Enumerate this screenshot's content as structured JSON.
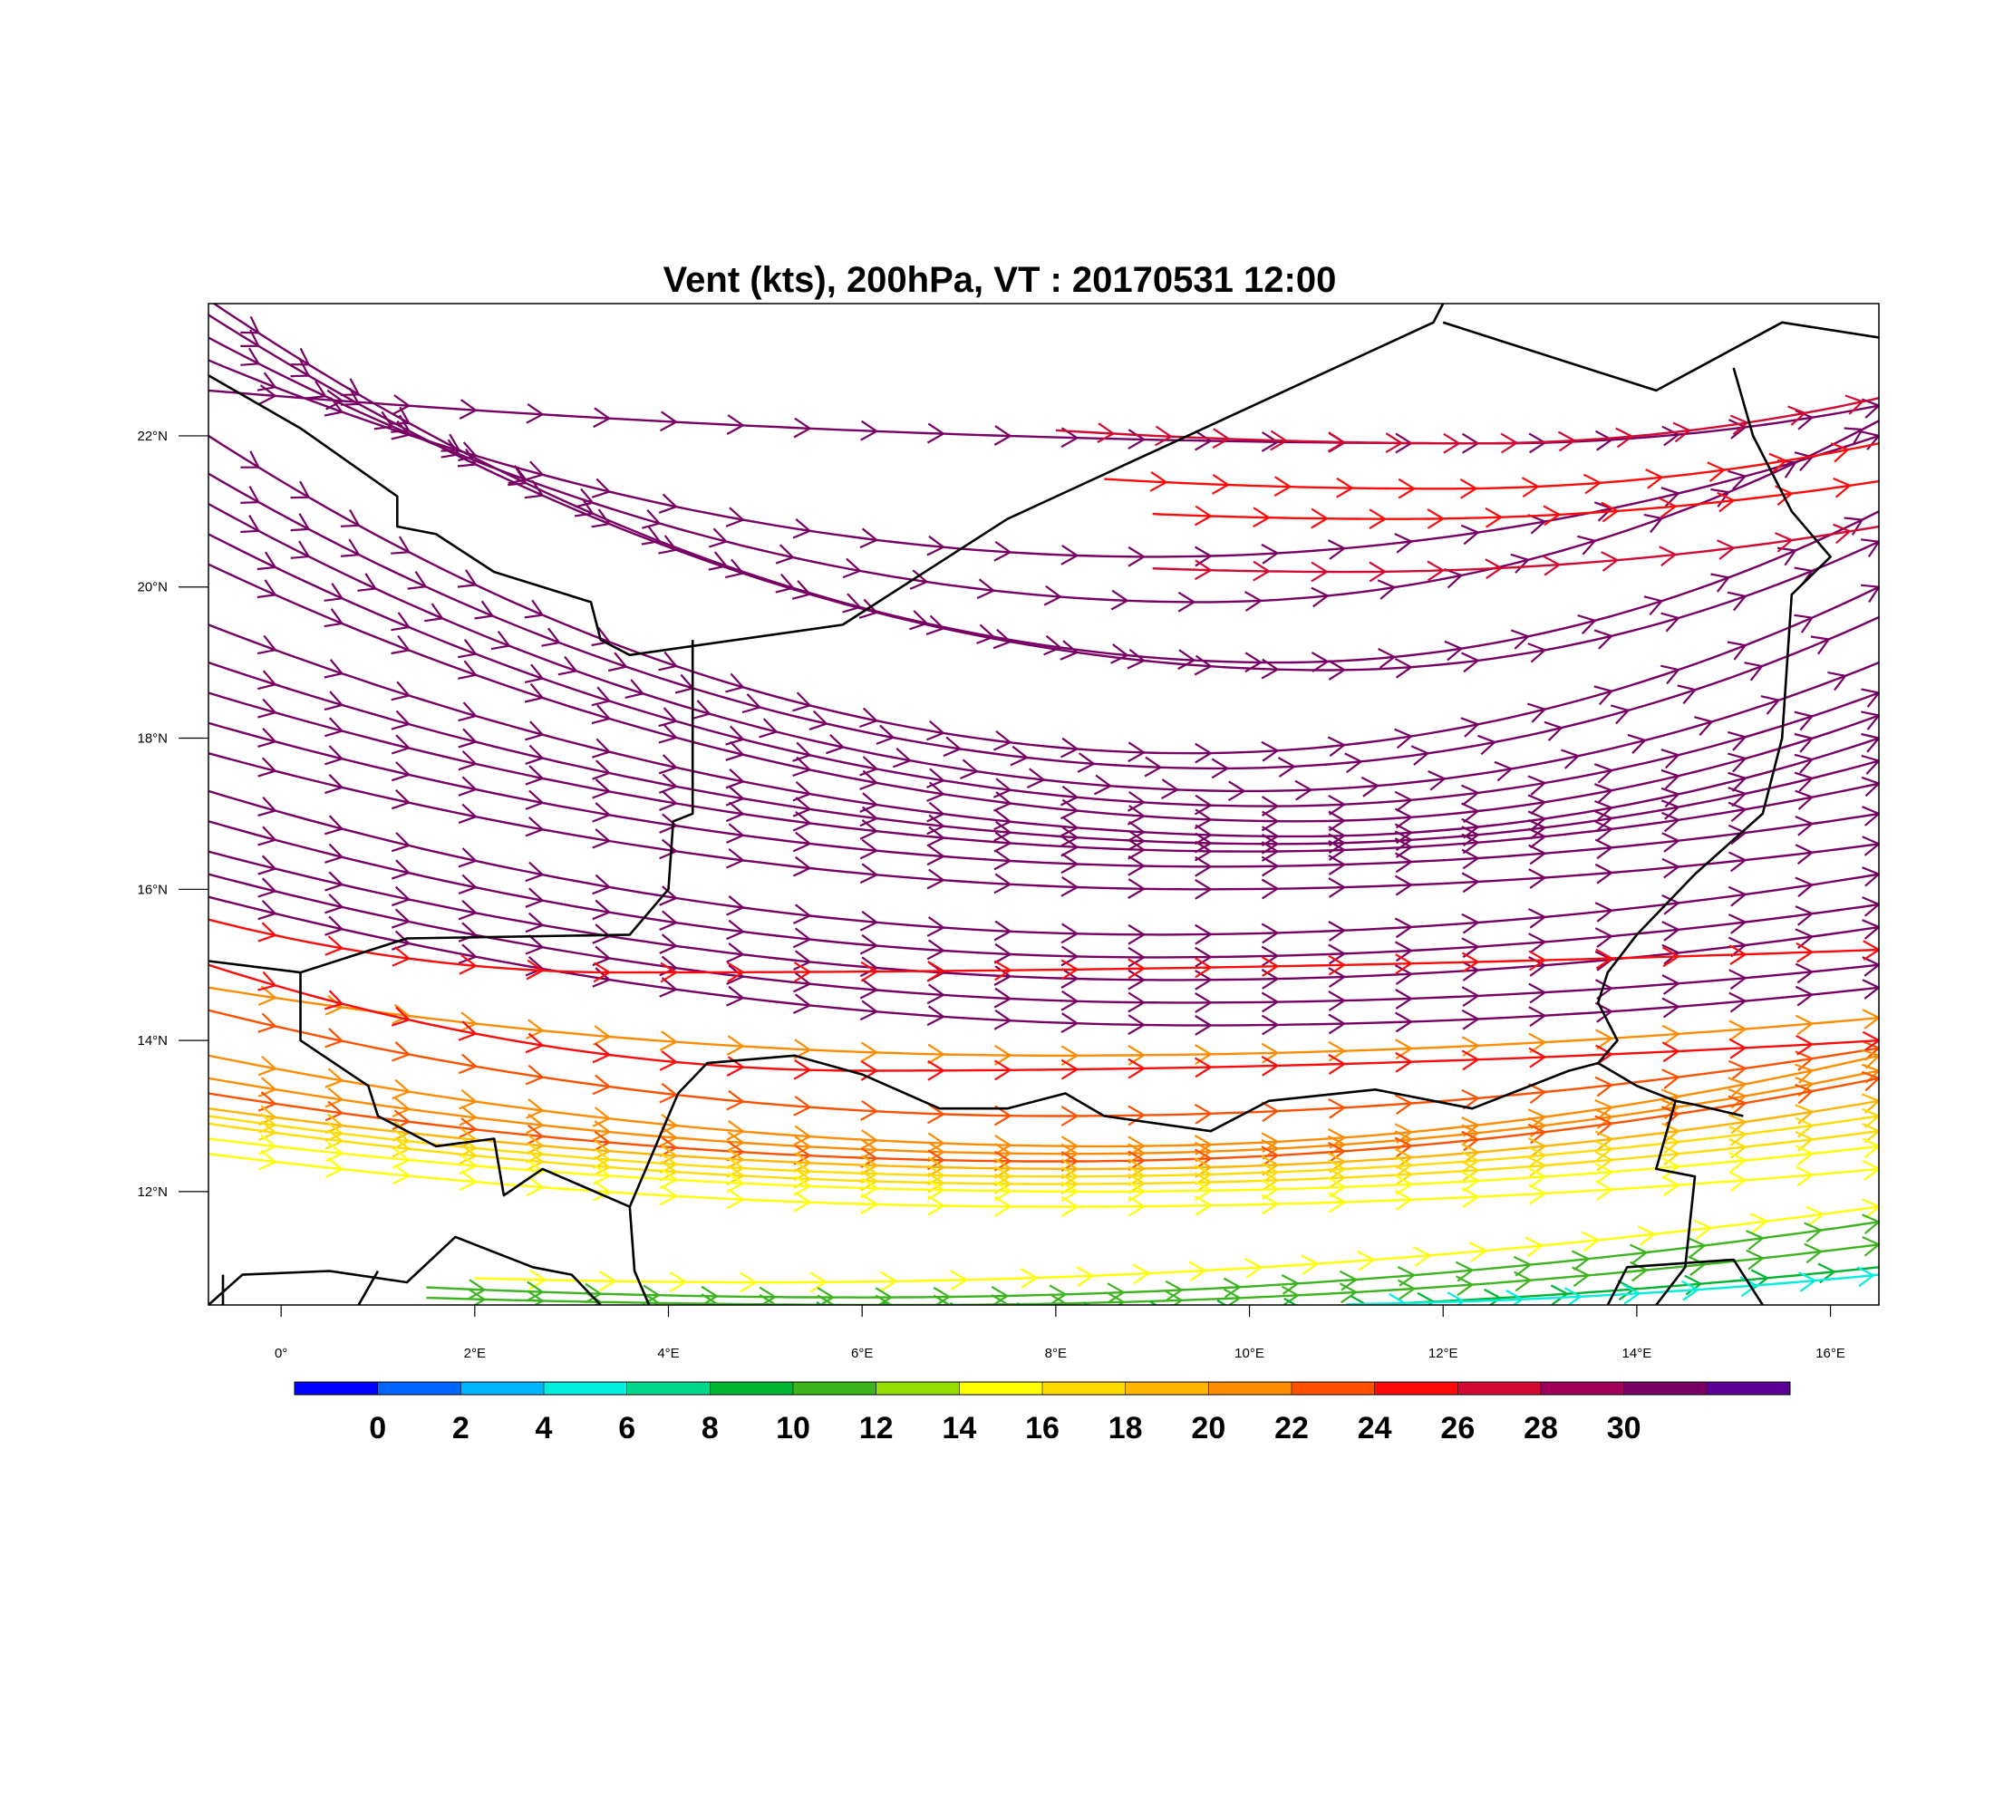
{
  "title": "Vent (kts), 200hPa, VT : 20170531  12:00",
  "map": {
    "extent": {
      "lon_min": -0.75,
      "lon_max": 16.5,
      "lat_min": 10.5,
      "lat_max": 23.75
    },
    "lon_ticks": [
      {
        "value": 0,
        "label": "0°"
      },
      {
        "value": 2,
        "label": "2°E"
      },
      {
        "value": 4,
        "label": "4°E"
      },
      {
        "value": 6,
        "label": "6°E"
      },
      {
        "value": 8,
        "label": "8°E"
      },
      {
        "value": 10,
        "label": "10°E"
      },
      {
        "value": 12,
        "label": "12°E"
      },
      {
        "value": 14,
        "label": "14°E"
      },
      {
        "value": 16,
        "label": "16°E"
      }
    ],
    "lat_ticks": [
      {
        "value": 12,
        "label": "12°N"
      },
      {
        "value": 14,
        "label": "14°N"
      },
      {
        "value": 16,
        "label": "16°N"
      },
      {
        "value": 18,
        "label": "18°N"
      },
      {
        "value": 20,
        "label": "20°N"
      },
      {
        "value": 22,
        "label": "22°N"
      }
    ],
    "borders": [
      [
        [
          -0.75,
          22.8
        ],
        [
          0.2,
          22.1
        ],
        [
          1.2,
          21.2
        ],
        [
          1.2,
          20.8
        ],
        [
          1.6,
          20.7
        ],
        [
          2.2,
          20.2
        ],
        [
          3.2,
          19.8
        ],
        [
          3.3,
          19.3
        ],
        [
          3.6,
          19.1
        ],
        [
          5.8,
          19.5
        ],
        [
          7.5,
          20.9
        ],
        [
          11.9,
          23.5
        ],
        [
          12.0,
          23.75
        ]
      ],
      [
        [
          4.25,
          19.3
        ],
        [
          4.25,
          17.0
        ],
        [
          4.05,
          16.9
        ],
        [
          4.0,
          16.0
        ],
        [
          3.6,
          15.4
        ],
        [
          1.3,
          15.35
        ],
        [
          0.2,
          14.9
        ],
        [
          -0.75,
          15.05
        ]
      ],
      [
        [
          0.2,
          14.9
        ],
        [
          0.2,
          14.0
        ],
        [
          0.9,
          13.4
        ],
        [
          1.0,
          13.0
        ],
        [
          1.6,
          12.6
        ],
        [
          2.2,
          12.7
        ],
        [
          2.3,
          11.95
        ],
        [
          2.7,
          12.3
        ],
        [
          3.6,
          11.8
        ],
        [
          3.65,
          10.95
        ],
        [
          3.8,
          10.5
        ]
      ],
      [
        [
          3.6,
          11.8
        ],
        [
          4.1,
          13.3
        ],
        [
          4.4,
          13.7
        ],
        [
          5.3,
          13.8
        ],
        [
          6.0,
          13.55
        ],
        [
          6.8,
          13.1
        ],
        [
          7.5,
          13.1
        ],
        [
          8.1,
          13.3
        ],
        [
          8.5,
          13.0
        ],
        [
          9.6,
          12.8
        ],
        [
          10.2,
          13.2
        ],
        [
          11.3,
          13.35
        ],
        [
          12.3,
          13.1
        ],
        [
          13.3,
          13.6
        ],
        [
          13.6,
          13.7
        ]
      ],
      [
        [
          16.5,
          23.3
        ],
        [
          15.5,
          23.5
        ],
        [
          14.2,
          22.6
        ],
        [
          12.0,
          23.5
        ]
      ],
      [
        [
          15.0,
          22.9
        ],
        [
          15.2,
          22.0
        ],
        [
          15.6,
          21.0
        ],
        [
          16.0,
          20.4
        ],
        [
          15.6,
          19.9
        ],
        [
          15.5,
          18.0
        ],
        [
          15.3,
          17.0
        ],
        [
          14.6,
          16.2
        ],
        [
          14.0,
          15.4
        ],
        [
          13.7,
          14.9
        ],
        [
          13.6,
          14.5
        ],
        [
          13.8,
          14.0
        ],
        [
          13.6,
          13.7
        ]
      ],
      [
        [
          13.6,
          13.7
        ],
        [
          14.0,
          13.4
        ],
        [
          14.4,
          13.2
        ],
        [
          14.6,
          13.15
        ],
        [
          15.1,
          13.0
        ]
      ],
      [
        [
          14.4,
          13.2
        ],
        [
          14.2,
          12.3
        ],
        [
          14.6,
          12.2
        ],
        [
          14.5,
          11.0
        ],
        [
          14.2,
          10.5
        ]
      ],
      [
        [
          -0.75,
          10.5
        ],
        [
          -0.4,
          10.9
        ],
        [
          0.5,
          10.95
        ],
        [
          1.3,
          10.8
        ],
        [
          1.8,
          11.4
        ],
        [
          2.6,
          11.0
        ],
        [
          3.0,
          10.9
        ],
        [
          3.3,
          10.5
        ]
      ],
      [
        [
          13.7,
          10.5
        ],
        [
          13.9,
          11.0
        ],
        [
          15.0,
          11.1
        ],
        [
          15.3,
          10.5
        ]
      ],
      [
        [
          -0.6,
          10.5
        ],
        [
          -0.6,
          10.9
        ]
      ],
      [
        [
          0.8,
          10.5
        ],
        [
          1.0,
          10.95
        ]
      ]
    ]
  },
  "colorbar": {
    "colors": [
      "#0000ff",
      "#0064ff",
      "#00b4ff",
      "#00eedd",
      "#00d68c",
      "#00b432",
      "#3cb41e",
      "#96dc00",
      "#ffff00",
      "#ffdc00",
      "#ffb400",
      "#ff8c00",
      "#ff5000",
      "#ff0a0a",
      "#d20a32",
      "#a0005a",
      "#780064",
      "#5a0096"
    ],
    "labels": [
      "0",
      "2",
      "4",
      "6",
      "8",
      "10",
      "12",
      "14",
      "16",
      "18",
      "20",
      "22",
      "24",
      "26",
      "28",
      "30"
    ]
  }
}
